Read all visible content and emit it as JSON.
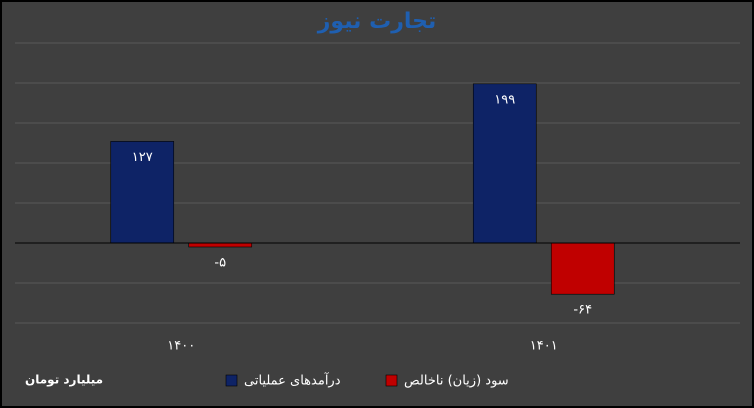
{
  "chart_data": {
    "type": "bar",
    "title": "تجارت نیوز",
    "note": "میلیارد تومان",
    "categories": [
      "۱۴۰۰",
      "۱۴۰۱"
    ],
    "series": [
      {
        "name": "درآمدهای عملیاتی",
        "color": "#0e2366",
        "values": [
          127,
          199
        ],
        "value_labels": [
          "۱۲۷",
          "۱۹۹"
        ]
      },
      {
        "name": "سود (زیان) ناخالص",
        "color": "#c00000",
        "values": [
          -5,
          -64
        ],
        "value_labels": [
          "-۵",
          "-۶۴"
        ]
      }
    ],
    "ylim": [
      -100,
      250
    ],
    "yticks": [
      -100,
      -50,
      0,
      50,
      100,
      150,
      200,
      250
    ],
    "grid": true,
    "legend": "bottom"
  }
}
